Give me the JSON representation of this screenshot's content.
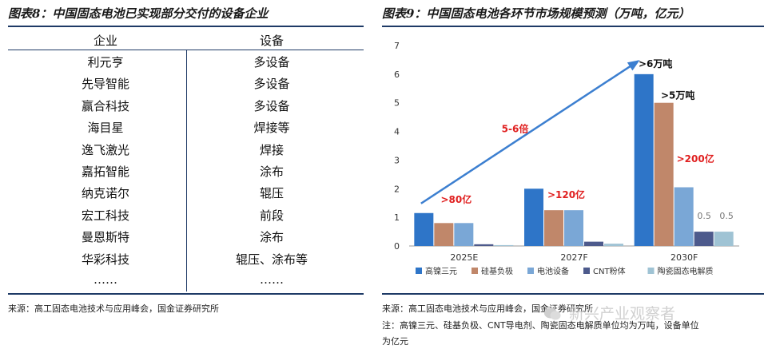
{
  "left": {
    "title": "图表8：中国固态电池已实现部分交付的设备企业",
    "headers": [
      "企业",
      "设备"
    ],
    "rows": [
      [
        "利元亨",
        "多设备"
      ],
      [
        "先导智能",
        "多设备"
      ],
      [
        "赢合科技",
        "多设备"
      ],
      [
        "海目星",
        "焊接等"
      ],
      [
        "逸飞激光",
        "焊接"
      ],
      [
        "嘉拓智能",
        "涂布"
      ],
      [
        "纳克诺尔",
        "辊压"
      ],
      [
        "宏工科技",
        "前段"
      ],
      [
        "曼恩斯特",
        "涂布"
      ],
      [
        "华彩科技",
        "辊压、涂布等"
      ],
      [
        "……",
        "……"
      ]
    ],
    "source": "来源：高工固态电池技术与应用峰会，国金证券研究所"
  },
  "right": {
    "title": "图表9：中国固态电池各环节市场规模预测（万吨，亿元）",
    "source": "来源：高工固态电池技术与应用峰会，国金证券研究所",
    "note_line1": "注：高镍三元、硅基负极、CNT导电剂、陶瓷固态电解质单位均为万吨，设备单位",
    "note_line2": "为亿元"
  },
  "watermark": "新兴产业观察者",
  "chart_data": {
    "type": "bar",
    "categories": [
      "2025E",
      "2027F",
      "2030F"
    ],
    "series": [
      {
        "name": "高镍三元",
        "color": "#2e75c8",
        "values": [
          1.15,
          2.0,
          6.0
        ]
      },
      {
        "name": "硅基负极",
        "color": "#c0876a",
        "values": [
          0.8,
          1.25,
          5.0
        ]
      },
      {
        "name": "电池设备",
        "color": "#7aa7d6",
        "values": [
          0.8,
          1.25,
          2.05
        ]
      },
      {
        "name": "CNT粉体",
        "color": "#4d5a8c",
        "values": [
          0.06,
          0.15,
          0.5
        ]
      },
      {
        "name": "陶瓷固态电解质",
        "color": "#9fc3d4",
        "values": [
          0.03,
          0.08,
          0.5
        ]
      }
    ],
    "ylim": [
      0,
      7
    ],
    "yticks": [
      0,
      1,
      2,
      3,
      4,
      5,
      6,
      7
    ],
    "legend_position": "bottom",
    "annotations": [
      {
        "text": ">80亿",
        "color": "#e02020"
      },
      {
        "text": ">120亿",
        "color": "#e02020"
      },
      {
        "text": ">200亿",
        "color": "#e02020"
      },
      {
        "text": ">6万吨",
        "color": "#111111"
      },
      {
        "text": ">5万吨",
        "color": "#111111"
      },
      {
        "text": "5-6倍",
        "color": "#e02020"
      },
      {
        "text": "0.5",
        "color": "#777777"
      },
      {
        "text": "0.5",
        "color": "#777777"
      }
    ]
  }
}
